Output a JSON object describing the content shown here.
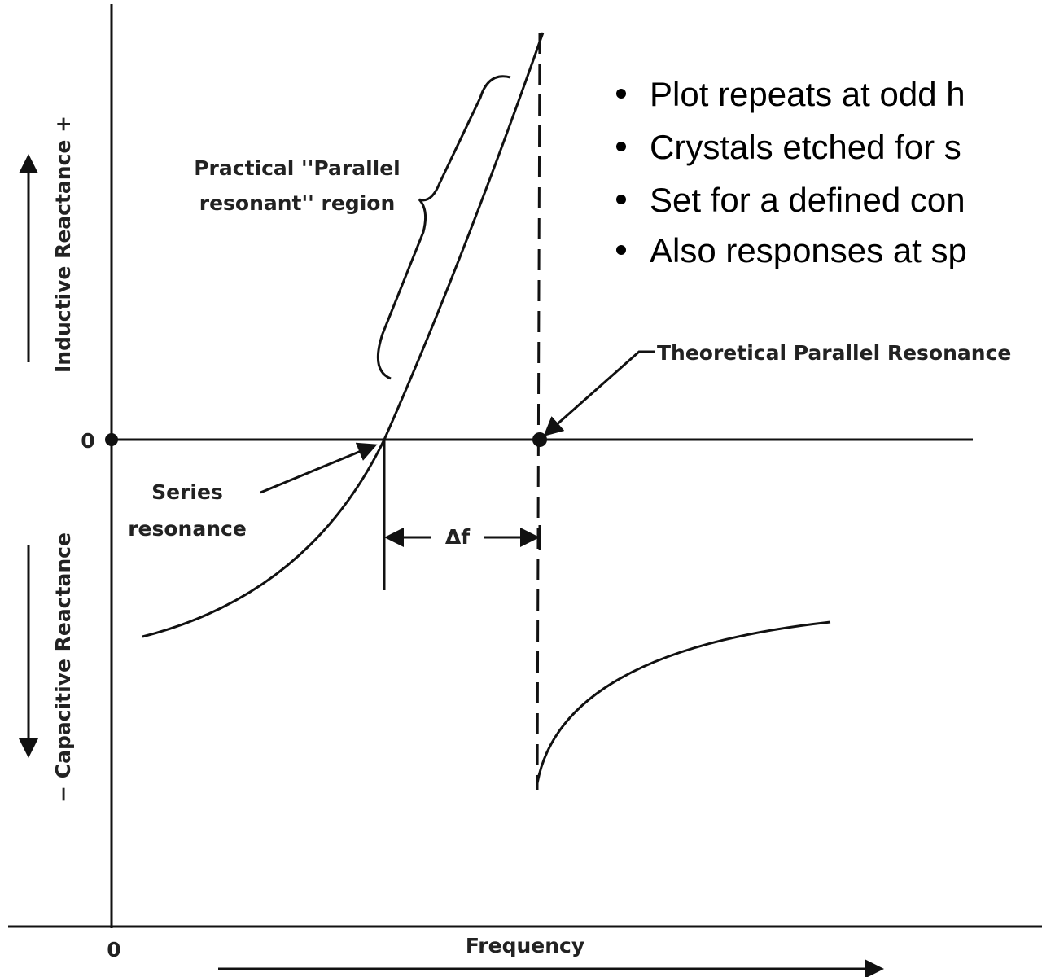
{
  "bullets": [
    "Plot repeats at odd h",
    "Crystals etched for s",
    "Set for a defined con",
    "Also responses at sp"
  ],
  "labels": {
    "parallel_region": [
      "Practical ''Parallel",
      "resonant'' region"
    ],
    "theoretical": "Theoretical Parallel Resonance",
    "series": [
      "Series",
      "resonance"
    ],
    "delta_f": "Δf",
    "y_zero": "0",
    "x_zero": "0",
    "x_axis": "Frequency",
    "y_upper": "Inductive Reactance +",
    "y_lower": "− Capacitive Reactance"
  }
}
